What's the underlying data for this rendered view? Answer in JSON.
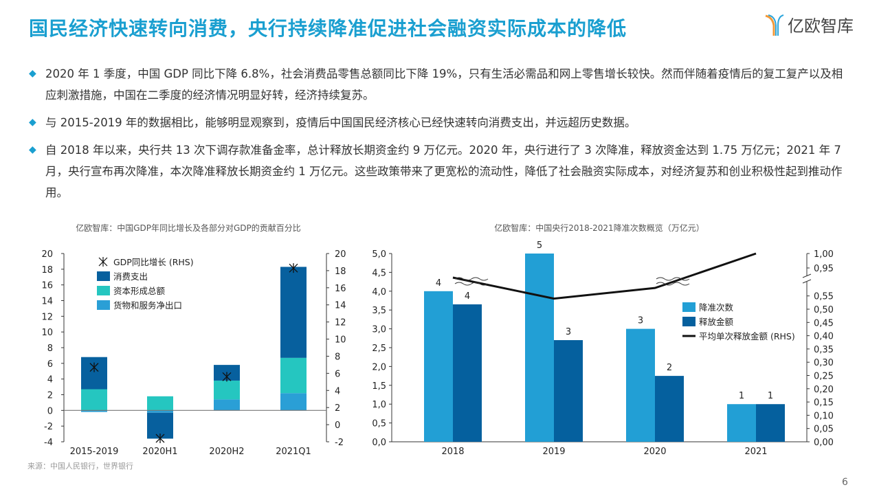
{
  "title": "国民经济快速转向消费，央行持续降准促进社会融资实际成本的降低",
  "logo": {
    "text": "亿欧智库",
    "colors": [
      "#f29a3a",
      "#2aa5dc"
    ]
  },
  "bullets": [
    "2020 年 1 季度，中国 GDP 同比下降 6.8%，社会消费品零售总额同比下降 19%，只有生活必需品和网上零售增长较快。然而伴随着疫情后的复工复产以及相应刺激措施，中国在二季度的经济情况明显好转，经济持续复苏。",
    "与 2015-2019 年的数据相比，能够明显观察到，疫情后中国国民经济核心已经快速转向消费支出，并远超历史数据。",
    "自 2018 年以来，央行共 13 次下调存款准备金率，总计释放长期资金约 9 万亿元。2020 年，央行进行了 3 次降准，释放资金达到 1.75 万亿元；2021 年 7 月，央行宣布再次降准，本次降准释放长期资金约 1 万亿元。这些政策带来了更宽松的流动性，降低了社会融资实际成本，对经济复苏和创业积极性起到推动作用。"
  ],
  "source": "来源：中国人民银行，世界银行",
  "page": "6",
  "chart_data": [
    {
      "type": "bar",
      "stacked": true,
      "title": "亿欧智库：中国GDP年同比增长及各部分对GDP的贡献百分比",
      "categories": [
        "2015-2019",
        "2020H1",
        "2020H2",
        "2021Q1"
      ],
      "ylim": [
        -4,
        20
      ],
      "yticks": [
        "-4",
        "-2",
        "0",
        "2",
        "4",
        "6",
        "8",
        "10",
        "12",
        "14",
        "16",
        "18",
        "20"
      ],
      "y2lim": [
        -2,
        20
      ],
      "y2ticks": [
        "-2",
        "0",
        "2",
        "4",
        "6",
        "8",
        "10",
        "12",
        "14",
        "16",
        "18",
        "20"
      ],
      "legend": "top-left",
      "series": [
        {
          "name": "货物和服务净出口",
          "color": "#2a9fd6",
          "values": [
            -0.2,
            -0.3,
            1.4,
            2.2
          ]
        },
        {
          "name": "资本形成总额",
          "color": "#25c6c0",
          "values": [
            2.7,
            1.8,
            2.4,
            4.5
          ]
        },
        {
          "name": "消费支出",
          "color": "#07609e",
          "values": [
            4.1,
            -3.3,
            2.0,
            11.6
          ]
        },
        {
          "name": "GDP同比增长 (RHS)",
          "type": "scatter",
          "marker": "asterisk",
          "color": "#111",
          "axis": "right",
          "values": [
            6.7,
            -1.6,
            5.6,
            18.3
          ]
        }
      ]
    },
    {
      "type": "bar",
      "title": "亿欧智库：中国央行2018-2021降准次数概览（万亿元）",
      "categories": [
        "2018",
        "2019",
        "2020",
        "2021"
      ],
      "ylim": [
        0,
        5
      ],
      "yticks": [
        "0,0",
        "0,5",
        "1,0",
        "1,5",
        "2,0",
        "2,5",
        "3,0",
        "3,5",
        "4,0",
        "4,5",
        "5,0"
      ],
      "y2ticks": [
        "0,00",
        "0,05",
        "0,10",
        "0,15",
        "0,20",
        "0,25",
        "0,30",
        "0,35",
        "0,40",
        "0,45",
        "0,50",
        "0,55",
        "0,95",
        "1,00"
      ],
      "y2_axis_break": [
        0.55,
        0.95
      ],
      "legend": "right",
      "series": [
        {
          "name": "降准次数",
          "color": "#229fd5",
          "values": [
            4,
            5,
            3,
            1
          ],
          "labels": [
            "4",
            "5",
            "3",
            "1"
          ]
        },
        {
          "name": "释放金额",
          "color": "#05609e",
          "values": [
            3.65,
            2.7,
            1.75,
            1.0
          ],
          "labels": [
            "4",
            "3",
            "2",
            "1"
          ]
        },
        {
          "name": "平均单次释放金额 (RHS)",
          "type": "line",
          "color": "#111",
          "axis": "right",
          "values": [
            0.91,
            0.54,
            0.58,
            1.0
          ]
        }
      ]
    }
  ]
}
